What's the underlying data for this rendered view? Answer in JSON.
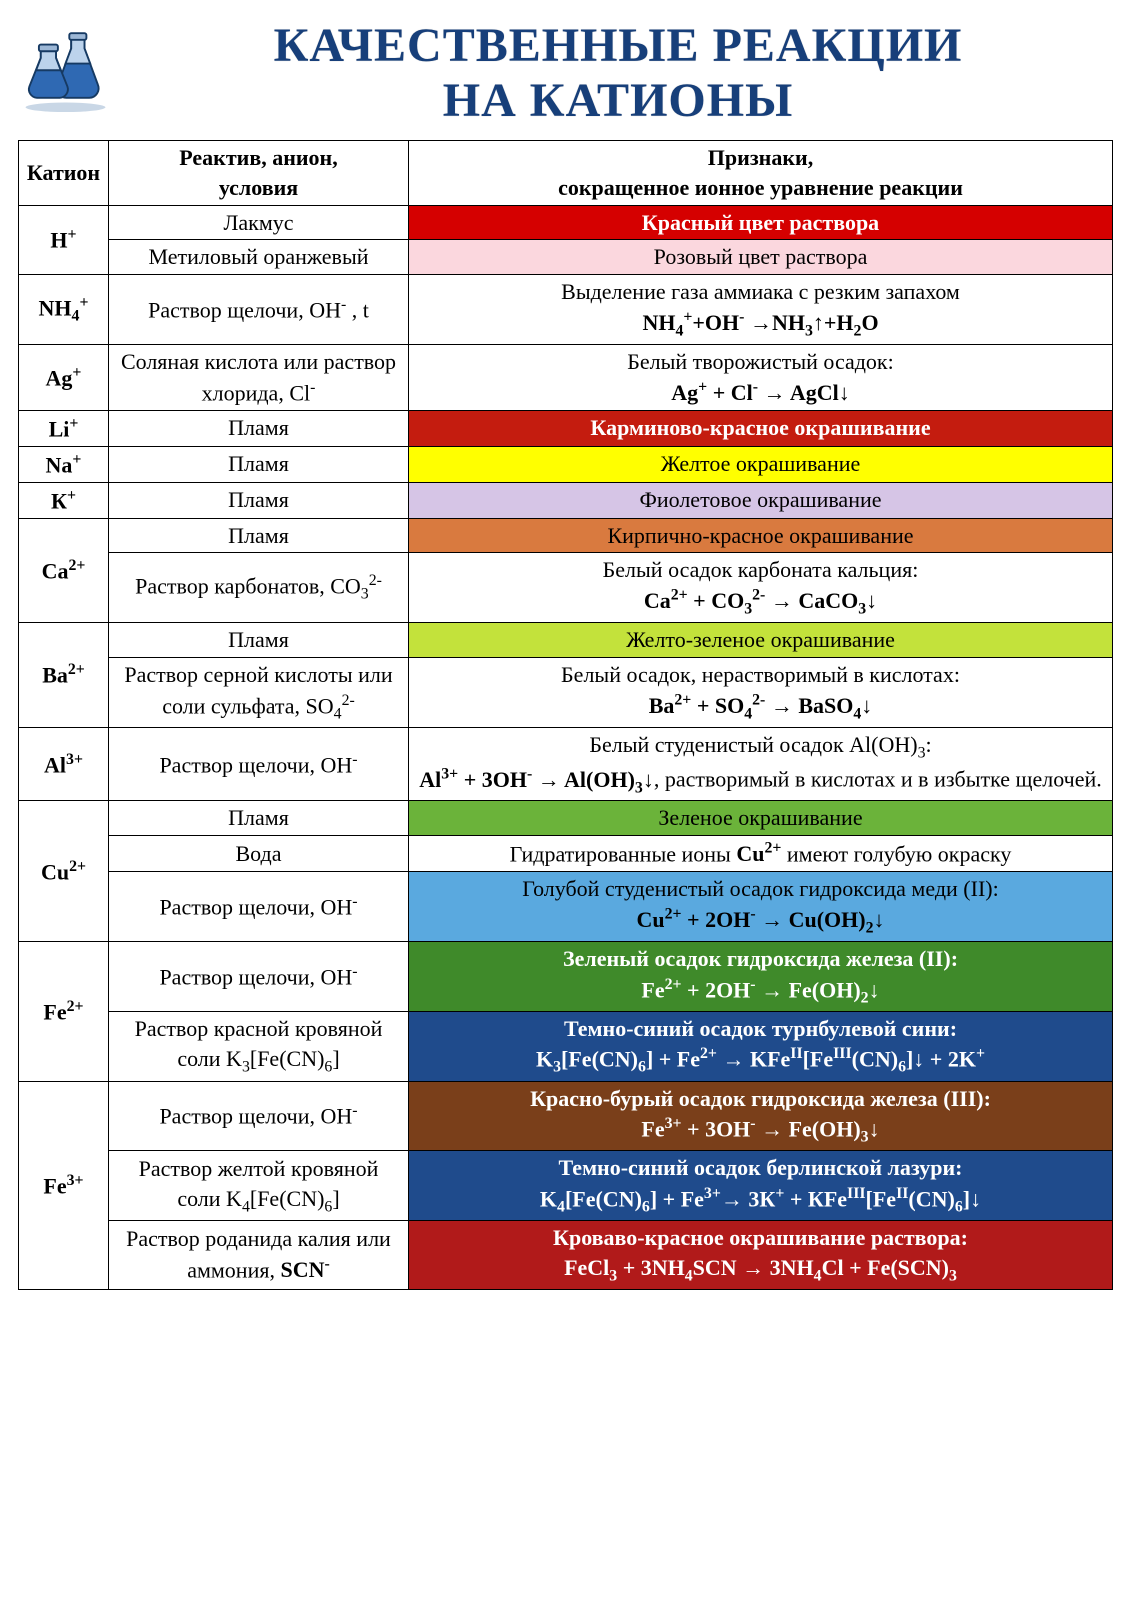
{
  "title_line1": "КАЧЕСТВЕННЫЕ РЕАКЦИИ",
  "title_line2": "НА КАТИОНЫ",
  "title_color": "#173f7a",
  "title_fontsize": 48,
  "columns": {
    "cation": "Катион",
    "reagent_l1": "Реактив, анион,",
    "reagent_l2": "условия",
    "signs_l1": "Признаки,",
    "signs_l2": "сокращенное ионное уравнение реакции"
  },
  "col_widths": {
    "cation": "90px",
    "reagent": "300px",
    "signs": "auto"
  },
  "header_fontsize": 22,
  "cell_fontsize": 22,
  "colors": {
    "red_solid": "#d50000",
    "pink_light": "#fbd7de",
    "carmine": "#c41c0f",
    "yellow": "#ffff00",
    "violet": "#d6c5e6",
    "brick": "#d97a3f",
    "yellowgreen": "#c3e23b",
    "green": "#6bb33a",
    "skyblue": "#5aa9df",
    "darkgreen": "#3f8a2a",
    "darkblue": "#1f4b8c",
    "brown": "#7a3f1a",
    "bloodred": "#b11a1a",
    "white_text": "#ffffff",
    "black_text": "#000000"
  },
  "rows": [
    {
      "cation_html": "H<span class='sup'>+</span>",
      "cation_rowspan": 2,
      "reagent": "Лакмус",
      "sign_html": "Красный цвет раствора",
      "bg": "#d50000",
      "fg": "#ffffff",
      "bold": true
    },
    {
      "reagent": "Метиловый оранжевый",
      "sign_html": "Розовый цвет раствора",
      "bg": "#fbd7de",
      "fg": "#000000"
    },
    {
      "cation_html": "NH<span class='sub'>4</span><span class='sup'>+</span>",
      "reagent": "Раствор щелочи,  OH<span class='sup'>-</span> , t",
      "sign_html": "Выделение  газа  аммиака с резким запахом<br><b>NH<span class='sub'>4</span><span class='sup'>+</span>+OH<span class='sup'>-</span> →NH<span class='sub'>3</span>↑+H<span class='sub'>2</span>O</b>"
    },
    {
      "cation_html": "Ag<span class='sup'>+</span>",
      "reagent": "Соляная кислота или раствор хлорида,  Cl<span class='sup'>-</span>",
      "sign_html": "Белый творожистый  осадок:<br><b>Ag<span class='sup'>+</span> + Cl<span class='sup'>-</span> → AgCl↓</b>"
    },
    {
      "cation_html": "Li<span class='sup'>+</span>",
      "reagent": "Пламя",
      "sign_html": "Карминово-красное окрашивание",
      "bg": "#c41c0f",
      "fg": "#ffffff",
      "bold": true
    },
    {
      "cation_html": "Na<span class='sup'>+</span>",
      "reagent": "Пламя",
      "sign_html": "Желтое окрашивание",
      "bg": "#ffff00",
      "fg": "#000000"
    },
    {
      "cation_html": "К<span class='sup'>+</span>",
      "reagent": "Пламя",
      "sign_html": "Фиолетовое окрашивание",
      "bg": "#d6c5e6",
      "fg": "#000000"
    },
    {
      "cation_html": "Ca<span class='sup'>2+</span>",
      "cation_rowspan": 2,
      "reagent": "Пламя",
      "sign_html": "Кирпично-красное окрашивание",
      "bg": "#d97a3f",
      "fg": "#000000"
    },
    {
      "reagent": "Раствор карбонатов, CO<span class='sub'>3</span><span class='sup'>2-</span>",
      "sign_html": "Белый осадок карбоната кальция:<br><b>Ca<span class='sup'>2+</span> + CO<span class='sub'>3</span><span class='sup'>2-</span>  → CaCO<span class='sub'>3</span>↓</b>"
    },
    {
      "cation_html": "Ba<span class='sup'>2+</span>",
      "cation_rowspan": 2,
      "reagent": "Пламя",
      "sign_html": "Желто-зеленое окрашивание",
      "bg": "#c3e23b",
      "fg": "#000000"
    },
    {
      "reagent": "Раствор серной кислоты или соли сульфата,  SO<span class='sub'>4</span><span class='sup'>2-</span>",
      "sign_html": "Белый осадок, нерастворимый в кислотах:<br><b>Ba<span class='sup'>2+</span> + SO<span class='sub'>4</span><span class='sup'>2-</span> → BaSO<span class='sub'>4</span>↓</b>"
    },
    {
      "cation_html": "Al<span class='sup'>3+</span>",
      "reagent": "Раствор щелочи,  OH<span class='sup'>-</span>",
      "sign_html": "Белый студенистый осадок Al(OH)<span class='sub'>3</span>:<br><b>Al<span class='sup'>3+</span> + 3OH<span class='sup'>-</span> → Al(OH)<span class='sub'>3</span>↓</b>, растворимый в кислотах и в избытке щелочей."
    },
    {
      "cation_html": "Cu<span class='sup'>2+</span>",
      "cation_rowspan": 3,
      "reagent": "Пламя",
      "sign_html": "Зеленое окрашивание",
      "bg": "#6bb33a",
      "fg": "#000000"
    },
    {
      "reagent": "Вода",
      "sign_html": "Гидратированные ионы <b>Cu<span class='sup'>2+</span></b> имеют голубую окраску"
    },
    {
      "reagent": "Раствор щелочи,  OH<span class='sup'>-</span>",
      "sign_html": "Голубой студенистый осадок гидроксида меди (II):<br><b>Cu<span class='sup'>2+</span> + 2OH<span class='sup'>-</span> → Cu(OH)<span class='sub'>2</span>↓</b>",
      "bg": "#5aa9df",
      "fg": "#000000"
    },
    {
      "cation_html": "Fe<span class='sup'>2+</span>",
      "cation_rowspan": 2,
      "reagent": "Раствор щелочи,  OH<span class='sup'>-</span>",
      "sign_html": "Зеленый осадок гидроксида железа (II):<br>Fe<span class='sup'>2+</span> + 2OH<span class='sup'>-</span> → Fe(OH)<span class='sub'>2</span>↓",
      "bg": "#3f8a2a",
      "fg": "#ffffff",
      "bold": true
    },
    {
      "reagent": "Раствор красной кровяной соли K<span class='sub'>3</span>[Fe(CN)<span class='sub'>6</span>]",
      "sign_html": "Темно-синий осадок турнбулевой сини:<br>K<span class='sub'>3</span>[Fe(CN)<span class='sub'>6</span>] + Fe<span class='sup'>2+</span> → KFe<span class='sup'>II</span>[Fe<span class='sup'>III</span>(CN)<span class='sub'>6</span>]↓ + 2K<span class='sup'>+</span>",
      "bg": "#1f4b8c",
      "fg": "#ffffff",
      "bold": true
    },
    {
      "cation_html": "Fe<span class='sup'>3+</span>",
      "cation_rowspan": 3,
      "reagent": "Раствор щелочи,  OH<span class='sup'>-</span>",
      "sign_html": "Красно-бурый осадок гидроксида железа (III):<br>Fe<span class='sup'>3+</span> + 3OH<span class='sup'>-</span> → Fe(OH)<span class='sub'>3</span>↓",
      "bg": "#7a3f1a",
      "fg": "#ffffff",
      "bold": true
    },
    {
      "reagent": "Раствор желтой кровяной соли K<span class='sub'>4</span>[Fe(CN)<span class='sub'>6</span>]",
      "sign_html": "Темно-синий осадок берлинской лазури:<br>K<span class='sub'>4</span>[Fe(CN)<span class='sub'>6</span>] + Fe<span class='sup'>3+</span>→ 3К<span class='sup'>+</span> + КFe<span class='sup'>III</span>[Fe<span class='sup'>II</span>(CN)<span class='sub'>6</span>]↓",
      "bg": "#1f4b8c",
      "fg": "#ffffff",
      "bold": true
    },
    {
      "reagent": "Раствор роданида калия или аммония, <b>SCN<span class='sup'>-</span></b>",
      "sign_html": "Кроваво-красное окрашивание раствора:<br>FeCl<span class='sub'>3</span> + 3NH<span class='sub'>4</span>SCN → 3NH<span class='sub'>4</span>Cl + Fe(SCN)<span class='sub'>3</span>",
      "bg": "#b11a1a",
      "fg": "#ffffff",
      "bold": true
    }
  ]
}
